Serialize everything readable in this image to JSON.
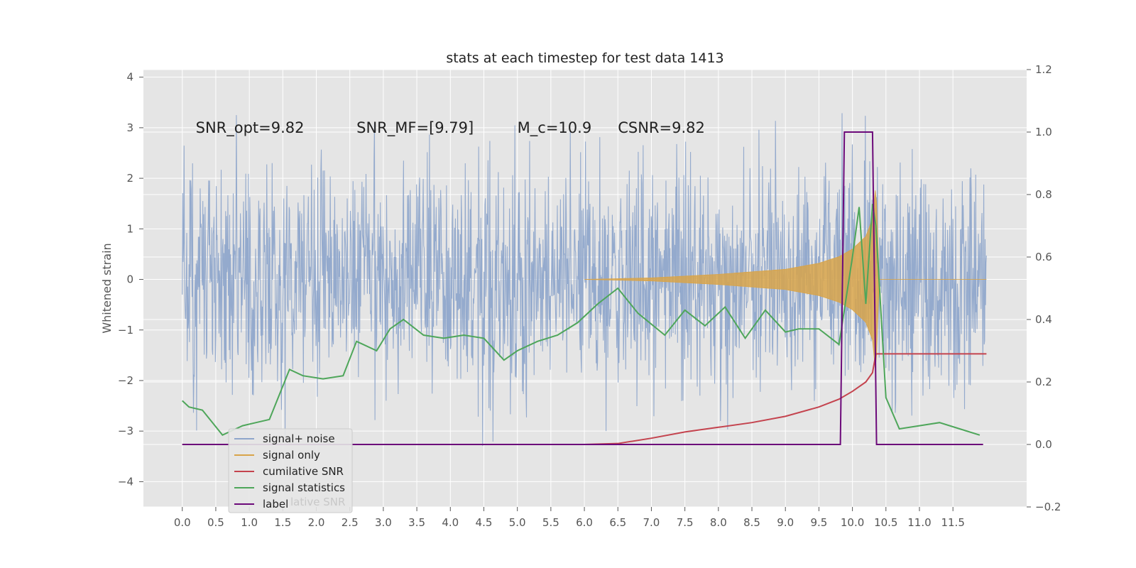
{
  "chart_data": {
    "type": "line",
    "title": "stats at each timestep for test data 1413",
    "xlabel": "",
    "ylabel": "Whitened strain",
    "y2label": "",
    "xlim": [
      -0.58,
      12.6
    ],
    "ylim": [
      -4.5,
      4.15
    ],
    "y2lim": [
      -0.2,
      1.2
    ],
    "x_ticks": [
      0.0,
      0.5,
      1.0,
      1.5,
      2.0,
      2.5,
      3.0,
      3.5,
      4.0,
      4.5,
      5.0,
      5.5,
      6.0,
      6.5,
      7.0,
      7.5,
      8.0,
      8.5,
      9.0,
      9.5,
      10.0,
      10.5,
      11.0,
      11.5
    ],
    "x_tick_labels": [
      "0.0",
      "0.5",
      "1.0",
      "1.5",
      "2.0",
      "2.5",
      "3.0",
      "3.5",
      "4.0",
      "4.5",
      "5.0",
      "5.5",
      "6.0",
      "6.5",
      "7.0",
      "7.5",
      "8.0",
      "8.5",
      "9.0",
      "9.5",
      "10.0",
      "10.5",
      "11.0",
      "11.5"
    ],
    "y_ticks": [
      4,
      3,
      2,
      1,
      0,
      -1,
      -2,
      -3,
      -4
    ],
    "y_tick_labels": [
      "4",
      "3",
      "2",
      "1",
      "0",
      "−1",
      "−2",
      "−3",
      "−4"
    ],
    "y2_ticks": [
      1.2,
      1.0,
      0.8,
      0.6,
      0.4,
      0.2,
      0.0,
      -0.2
    ],
    "y2_tick_labels": [
      "1.2",
      "1.0",
      "0.8",
      "0.6",
      "0.4",
      "0.2",
      "0.0",
      "−0.2"
    ],
    "grid": true,
    "legend_position": "lower-left",
    "annotations": [
      {
        "text": "SNR_opt=9.82",
        "x": 0.2,
        "y": 3.0
      },
      {
        "text": "SNR_MF=[9.79]",
        "x": 2.6,
        "y": 3.0
      },
      {
        "text": "M_c=10.9",
        "x": 5.0,
        "y": 3.0
      },
      {
        "text": "CSNR=9.82",
        "x": 6.5,
        "y": 3.0
      }
    ],
    "legend": {
      "partial_text": "lative SNR"
    },
    "series": [
      {
        "name": "signal+ noise",
        "axis": "left",
        "color": "#8fa6cb",
        "kind": "noise",
        "x_range": [
          0.0,
          12.0
        ],
        "envelope": [
          -3.3,
          3.5
        ]
      },
      {
        "name": "signal only",
        "axis": "left",
        "color": "#d8a44a",
        "kind": "chirp",
        "x": [
          6.0,
          7.0,
          8.0,
          9.0,
          9.5,
          9.8,
          10.0,
          10.2,
          10.3,
          10.35,
          10.4,
          12.0
        ],
        "amplitude": [
          0.0,
          0.03,
          0.1,
          0.2,
          0.32,
          0.45,
          0.6,
          0.85,
          1.2,
          1.9,
          0.0,
          0.0
        ]
      },
      {
        "name": "cumilative SNR",
        "axis": "right",
        "color": "#c4434e",
        "x": [
          0.0,
          6.0,
          6.5,
          7.0,
          7.5,
          8.0,
          8.5,
          9.0,
          9.5,
          9.8,
          10.0,
          10.2,
          10.3,
          10.35,
          12.0
        ],
        "y": [
          0.0,
          0.0,
          0.003,
          0.02,
          0.04,
          0.055,
          0.07,
          0.09,
          0.12,
          0.145,
          0.17,
          0.2,
          0.23,
          0.29,
          0.29
        ]
      },
      {
        "name": "signal statistics",
        "axis": "right",
        "color": "#4ea65a",
        "x": [
          0.0,
          0.1,
          0.3,
          0.6,
          0.7,
          0.9,
          1.1,
          1.3,
          1.6,
          1.8,
          2.1,
          2.4,
          2.6,
          2.9,
          3.1,
          3.3,
          3.6,
          3.9,
          4.2,
          4.5,
          4.8,
          5.0,
          5.3,
          5.6,
          5.9,
          6.2,
          6.5,
          6.8,
          7.2,
          7.5,
          7.8,
          8.1,
          8.4,
          8.7,
          9.0,
          9.2,
          9.5,
          9.8,
          10.0,
          10.1,
          10.2,
          10.3,
          10.35,
          10.5,
          10.7,
          11.0,
          11.3,
          11.6,
          11.9
        ],
        "y": [
          0.14,
          0.12,
          0.11,
          0.03,
          0.04,
          0.06,
          0.07,
          0.08,
          0.24,
          0.22,
          0.21,
          0.22,
          0.33,
          0.3,
          0.37,
          0.4,
          0.35,
          0.34,
          0.35,
          0.34,
          0.27,
          0.3,
          0.33,
          0.35,
          0.39,
          0.45,
          0.5,
          0.42,
          0.35,
          0.43,
          0.38,
          0.44,
          0.34,
          0.43,
          0.36,
          0.37,
          0.37,
          0.32,
          0.6,
          0.76,
          0.45,
          0.77,
          0.7,
          0.15,
          0.05,
          0.06,
          0.07,
          0.05,
          0.03
        ]
      },
      {
        "name": "label",
        "axis": "right",
        "color": "#6c0a7a",
        "x": [
          0.0,
          9.82,
          9.88,
          10.3,
          10.36,
          11.95
        ],
        "y": [
          0.0,
          0.0,
          1.0,
          1.0,
          0.0,
          0.0
        ]
      }
    ]
  }
}
